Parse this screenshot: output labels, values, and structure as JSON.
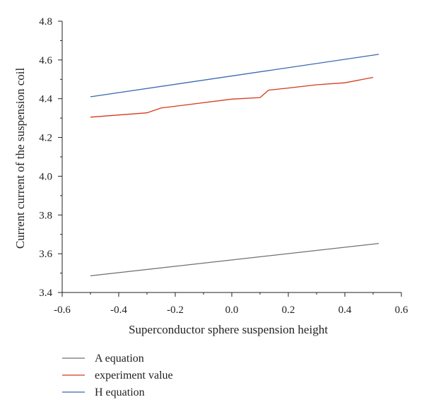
{
  "chart_data": {
    "type": "line",
    "xlabel": "Superconductor sphere suspension height",
    "ylabel": "Current current of the suspension coil",
    "xlim": [
      -0.6,
      0.6
    ],
    "ylim": [
      3.4,
      4.8
    ],
    "xticks": [
      -0.6,
      -0.4,
      -0.2,
      0.0,
      0.2,
      0.4,
      0.6
    ],
    "xtick_labels": [
      "-0.6",
      "-0.4",
      "-0.2",
      "0.0",
      "0.2",
      "0.4",
      "0.6"
    ],
    "yticks": [
      3.4,
      3.6,
      3.8,
      4.0,
      4.2,
      4.4,
      4.6,
      4.8
    ],
    "ytick_labels": [
      "3.4",
      "3.6",
      "3.8",
      "4.0",
      "4.2",
      "4.4",
      "4.6",
      "4.8"
    ],
    "grid": false,
    "legend_position": "bottom-left below plot",
    "series": [
      {
        "name": "A equation",
        "color": "#707070",
        "x": [
          -0.5,
          0.52
        ],
        "y": [
          3.486,
          3.653
        ]
      },
      {
        "name": "experiment value",
        "color": "#d43a1a",
        "x": [
          -0.5,
          -0.3,
          -0.25,
          0.0,
          0.1,
          0.13,
          0.2,
          0.3,
          0.4,
          0.5
        ],
        "y": [
          4.305,
          4.327,
          4.352,
          4.398,
          4.406,
          4.444,
          4.455,
          4.472,
          4.482,
          4.51
        ]
      },
      {
        "name": "H equation",
        "color": "#3a68b0",
        "x": [
          -0.5,
          0.52
        ],
        "y": [
          4.41,
          4.629
        ]
      }
    ]
  }
}
